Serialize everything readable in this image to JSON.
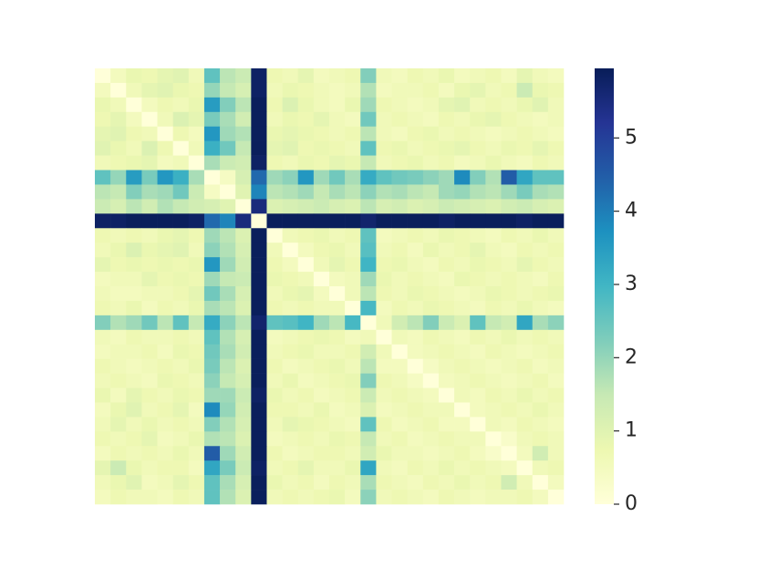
{
  "chart_data": {
    "type": "heatmap",
    "colormap": "YlGnBu",
    "zlim": [
      0,
      5.95
    ],
    "colorbar_ticks": [
      0,
      1,
      2,
      3,
      4,
      5
    ],
    "values": [
      [
        0,
        0.5,
        0.8,
        0.7,
        0.9,
        1.0,
        0.6,
        2.6,
        1.6,
        1.4,
        5.8,
        0.7,
        0.6,
        0.9,
        0.5,
        0.6,
        0.7,
        2.2,
        0.6,
        0.5,
        0.7,
        0.6,
        0.8,
        0.5,
        0.6,
        0.7,
        0.5,
        0.9,
        0.6,
        0.5
      ],
      [
        0.5,
        0,
        0.6,
        0.9,
        1.0,
        0.8,
        0.7,
        2.0,
        1.5,
        1.2,
        5.8,
        0.6,
        0.8,
        0.7,
        0.6,
        0.5,
        0.6,
        1.7,
        0.5,
        0.6,
        0.6,
        0.7,
        0.5,
        0.8,
        0.9,
        0.6,
        0.7,
        1.4,
        0.8,
        0.7
      ],
      [
        0.8,
        0.6,
        0,
        0.5,
        0.7,
        0.6,
        0.8,
        3.5,
        2.2,
        1.6,
        5.9,
        0.7,
        1.1,
        0.8,
        0.6,
        0.5,
        0.8,
        1.9,
        0.7,
        0.6,
        0.5,
        0.6,
        0.9,
        1.0,
        0.6,
        0.7,
        0.6,
        0.8,
        1.0,
        0.6
      ],
      [
        0.7,
        0.9,
        0.5,
        0,
        0.6,
        1.1,
        0.9,
        2.3,
        1.8,
        1.3,
        5.9,
        0.6,
        0.8,
        0.7,
        0.9,
        0.6,
        0.5,
        2.4,
        0.6,
        0.7,
        0.6,
        0.5,
        0.7,
        0.6,
        0.8,
        0.9,
        0.7,
        0.6,
        0.5,
        0.6
      ],
      [
        0.9,
        1.0,
        0.7,
        0.6,
        0,
        0.7,
        0.5,
        3.6,
        1.9,
        1.7,
        5.9,
        0.8,
        0.9,
        0.8,
        0.7,
        0.6,
        0.7,
        1.6,
        0.6,
        0.5,
        0.7,
        0.8,
        0.6,
        0.7,
        0.6,
        0.5,
        0.6,
        0.7,
        0.6,
        0.5
      ],
      [
        1.0,
        0.8,
        0.6,
        1.1,
        0.7,
        0,
        0.6,
        3.1,
        2.4,
        1.5,
        5.9,
        0.9,
        1.0,
        0.7,
        0.8,
        0.7,
        0.6,
        2.6,
        0.7,
        0.8,
        0.6,
        0.7,
        0.8,
        0.9,
        0.7,
        0.6,
        0.8,
        0.7,
        0.9,
        0.7
      ],
      [
        0.6,
        0.7,
        0.8,
        0.9,
        0.5,
        0.6,
        0,
        1.8,
        1.4,
        1.3,
        5.8,
        0.7,
        0.6,
        0.8,
        0.7,
        0.9,
        0.8,
        1.5,
        0.6,
        0.7,
        0.8,
        0.6,
        0.7,
        0.5,
        0.6,
        0.8,
        0.6,
        0.5,
        0.7,
        0.6
      ],
      [
        2.6,
        2.0,
        3.5,
        2.3,
        3.6,
        3.1,
        1.8,
        0,
        0.4,
        1.2,
        4.3,
        1.9,
        2.1,
        3.6,
        1.9,
        2.4,
        1.8,
        3.2,
        2.6,
        2.4,
        2.3,
        2.1,
        1.9,
        3.8,
        2.2,
        1.7,
        4.5,
        3.3,
        2.6,
        2.6
      ],
      [
        1.6,
        1.5,
        2.2,
        1.8,
        1.9,
        2.4,
        1.4,
        0.4,
        0,
        1.0,
        3.9,
        1.6,
        1.7,
        1.9,
        1.5,
        1.8,
        1.6,
        2.1,
        1.7,
        1.8,
        1.6,
        1.5,
        1.9,
        2.0,
        1.7,
        1.6,
        1.9,
        2.3,
        1.8,
        1.7
      ],
      [
        1.4,
        1.2,
        1.6,
        1.3,
        1.7,
        1.5,
        1.3,
        1.2,
        1.0,
        0,
        5.5,
        1.1,
        1.2,
        1.3,
        1.4,
        1.2,
        1.1,
        1.6,
        1.2,
        1.3,
        1.1,
        1.2,
        1.4,
        1.3,
        1.2,
        1.1,
        1.3,
        1.4,
        1.2,
        1.1
      ],
      [
        5.8,
        5.8,
        5.9,
        5.9,
        5.9,
        5.9,
        5.8,
        4.3,
        3.9,
        5.5,
        0,
        5.9,
        5.9,
        5.9,
        5.9,
        5.9,
        5.9,
        5.7,
        5.9,
        5.9,
        5.9,
        5.9,
        5.8,
        5.9,
        5.9,
        5.9,
        5.9,
        5.8,
        5.9,
        5.9
      ],
      [
        0.7,
        0.6,
        0.7,
        0.6,
        0.8,
        0.9,
        0.7,
        1.9,
        1.6,
        1.1,
        5.9,
        0,
        0.6,
        0.7,
        0.8,
        0.6,
        0.7,
        2.6,
        0.5,
        0.6,
        0.7,
        0.6,
        0.8,
        0.7,
        0.6,
        0.5,
        0.7,
        0.6,
        0.8,
        0.6
      ],
      [
        0.6,
        0.8,
        1.1,
        0.8,
        0.9,
        1.0,
        0.6,
        2.1,
        1.7,
        1.2,
        5.9,
        0.6,
        0,
        0.5,
        0.7,
        0.8,
        0.6,
        2.7,
        0.6,
        0.7,
        0.5,
        0.8,
        0.6,
        0.7,
        0.9,
        0.6,
        0.5,
        0.7,
        0.6,
        0.7
      ],
      [
        0.9,
        0.7,
        0.8,
        0.7,
        0.8,
        0.7,
        0.8,
        3.6,
        1.9,
        1.3,
        5.9,
        0.7,
        0.5,
        0,
        0.6,
        0.9,
        0.7,
        3.0,
        0.7,
        0.8,
        0.6,
        0.5,
        0.7,
        0.6,
        0.8,
        0.7,
        0.6,
        0.9,
        0.7,
        0.6
      ],
      [
        0.5,
        0.6,
        0.6,
        0.9,
        0.7,
        0.8,
        0.7,
        1.9,
        1.5,
        1.4,
        5.9,
        0.8,
        0.7,
        0.6,
        0,
        0.5,
        0.6,
        1.9,
        0.8,
        0.6,
        0.7,
        0.6,
        0.5,
        0.8,
        0.7,
        0.6,
        0.7,
        0.6,
        0.5,
        0.7
      ],
      [
        0.6,
        0.5,
        0.5,
        0.6,
        0.6,
        0.7,
        0.9,
        2.4,
        1.8,
        1.2,
        5.9,
        0.6,
        0.8,
        0.9,
        0.5,
        0,
        0.6,
        1.6,
        0.7,
        0.6,
        0.8,
        0.7,
        0.6,
        0.5,
        0.6,
        0.8,
        0.7,
        0.6,
        0.7,
        0.8
      ],
      [
        0.7,
        0.6,
        0.8,
        0.5,
        0.7,
        0.6,
        0.8,
        1.8,
        1.6,
        1.1,
        5.9,
        0.7,
        0.6,
        0.7,
        0.6,
        0.6,
        0,
        2.9,
        0.5,
        0.7,
        0.6,
        0.8,
        0.7,
        0.6,
        0.5,
        0.7,
        0.6,
        0.8,
        0.6,
        0.5
      ],
      [
        2.2,
        1.7,
        1.9,
        2.4,
        1.6,
        2.6,
        1.5,
        3.2,
        2.1,
        1.6,
        5.7,
        2.6,
        2.7,
        3.0,
        1.9,
        1.6,
        2.9,
        0,
        0.6,
        1.3,
        1.6,
        2.2,
        1.4,
        1.1,
        2.6,
        1.5,
        1.3,
        3.3,
        1.8,
        2.1
      ],
      [
        0.6,
        0.5,
        0.7,
        0.6,
        0.6,
        0.7,
        0.6,
        2.6,
        1.7,
        1.2,
        5.9,
        0.5,
        0.6,
        0.7,
        0.8,
        0.7,
        0.5,
        0.6,
        0,
        0.6,
        0.5,
        0.7,
        0.6,
        0.5,
        0.7,
        0.6,
        0.8,
        0.6,
        0.7,
        0.6
      ],
      [
        0.5,
        0.6,
        0.6,
        0.7,
        0.5,
        0.8,
        0.7,
        2.4,
        1.8,
        1.3,
        5.9,
        0.6,
        0.7,
        0.8,
        0.6,
        0.6,
        0.7,
        1.3,
        0.6,
        0,
        0.5,
        0.6,
        0.7,
        0.6,
        0.5,
        0.7,
        0.6,
        0.5,
        0.6,
        0.7
      ],
      [
        0.7,
        0.6,
        0.5,
        0.6,
        0.7,
        0.6,
        0.8,
        2.3,
        1.6,
        1.1,
        5.9,
        0.7,
        0.5,
        0.6,
        0.7,
        0.8,
        0.6,
        1.6,
        0.5,
        0.5,
        0,
        0.4,
        0.6,
        0.7,
        0.6,
        0.5,
        0.6,
        0.7,
        0.5,
        0.6
      ],
      [
        0.6,
        0.7,
        0.6,
        0.5,
        0.8,
        0.7,
        0.6,
        2.1,
        1.5,
        1.2,
        5.9,
        0.6,
        0.8,
        0.5,
        0.6,
        0.7,
        0.8,
        2.2,
        0.7,
        0.6,
        0.4,
        0,
        0.5,
        0.6,
        0.7,
        0.6,
        0.5,
        0.6,
        0.7,
        0.5
      ],
      [
        0.8,
        0.5,
        0.9,
        0.7,
        0.6,
        0.8,
        0.7,
        1.9,
        1.9,
        1.4,
        5.8,
        0.8,
        0.6,
        0.7,
        0.5,
        0.6,
        0.7,
        1.4,
        0.6,
        0.7,
        0.6,
        0.5,
        0,
        0.6,
        0.5,
        0.7,
        0.6,
        0.8,
        0.6,
        0.7
      ],
      [
        0.5,
        0.8,
        1.0,
        0.6,
        0.7,
        0.9,
        0.5,
        3.8,
        2.0,
        1.3,
        5.9,
        0.7,
        0.7,
        0.6,
        0.8,
        0.5,
        0.6,
        1.1,
        0.5,
        0.6,
        0.7,
        0.6,
        0.6,
        0,
        0.5,
        0.6,
        0.7,
        0.6,
        0.8,
        0.6
      ],
      [
        0.6,
        0.9,
        0.6,
        0.8,
        0.6,
        0.7,
        0.6,
        2.2,
        1.7,
        1.2,
        5.9,
        0.6,
        0.9,
        0.8,
        0.7,
        0.6,
        0.5,
        2.6,
        0.7,
        0.5,
        0.6,
        0.7,
        0.5,
        0.5,
        0,
        0.6,
        0.5,
        0.7,
        0.6,
        0.5
      ],
      [
        0.7,
        0.6,
        0.7,
        0.9,
        0.5,
        0.6,
        0.8,
        1.7,
        1.6,
        1.1,
        5.9,
        0.5,
        0.6,
        0.7,
        0.6,
        0.8,
        0.7,
        1.5,
        0.6,
        0.7,
        0.5,
        0.6,
        0.7,
        0.6,
        0.6,
        0,
        0.3,
        0.6,
        0.7,
        0.6
      ],
      [
        0.5,
        0.7,
        0.6,
        0.7,
        0.6,
        0.8,
        0.6,
        4.5,
        1.9,
        1.3,
        5.9,
        0.7,
        0.5,
        0.6,
        0.7,
        0.7,
        0.6,
        1.3,
        0.8,
        0.6,
        0.6,
        0.5,
        0.6,
        0.7,
        0.5,
        0.3,
        0,
        0.5,
        1.3,
        0.6
      ],
      [
        0.9,
        1.4,
        0.8,
        0.6,
        0.7,
        0.7,
        0.5,
        3.3,
        2.3,
        1.4,
        5.8,
        0.6,
        0.7,
        0.9,
        0.6,
        0.6,
        0.8,
        3.3,
        0.6,
        0.5,
        0.7,
        0.6,
        0.8,
        0.6,
        0.7,
        0.6,
        0.5,
        0,
        0.6,
        0.7
      ],
      [
        0.6,
        0.8,
        1.0,
        0.5,
        0.6,
        0.9,
        0.7,
        2.6,
        1.8,
        1.2,
        5.9,
        0.8,
        0.6,
        0.7,
        0.5,
        0.7,
        0.6,
        1.8,
        0.7,
        0.6,
        0.5,
        0.7,
        0.6,
        0.8,
        0.6,
        0.7,
        1.3,
        0.6,
        0,
        0.5
      ],
      [
        0.5,
        0.7,
        0.6,
        0.6,
        0.5,
        0.7,
        0.6,
        2.6,
        1.7,
        1.1,
        5.9,
        0.6,
        0.7,
        0.6,
        0.7,
        0.8,
        0.5,
        2.1,
        0.6,
        0.7,
        0.6,
        0.5,
        0.7,
        0.6,
        0.5,
        0.6,
        0.6,
        0.7,
        0.5,
        0
      ]
    ]
  }
}
